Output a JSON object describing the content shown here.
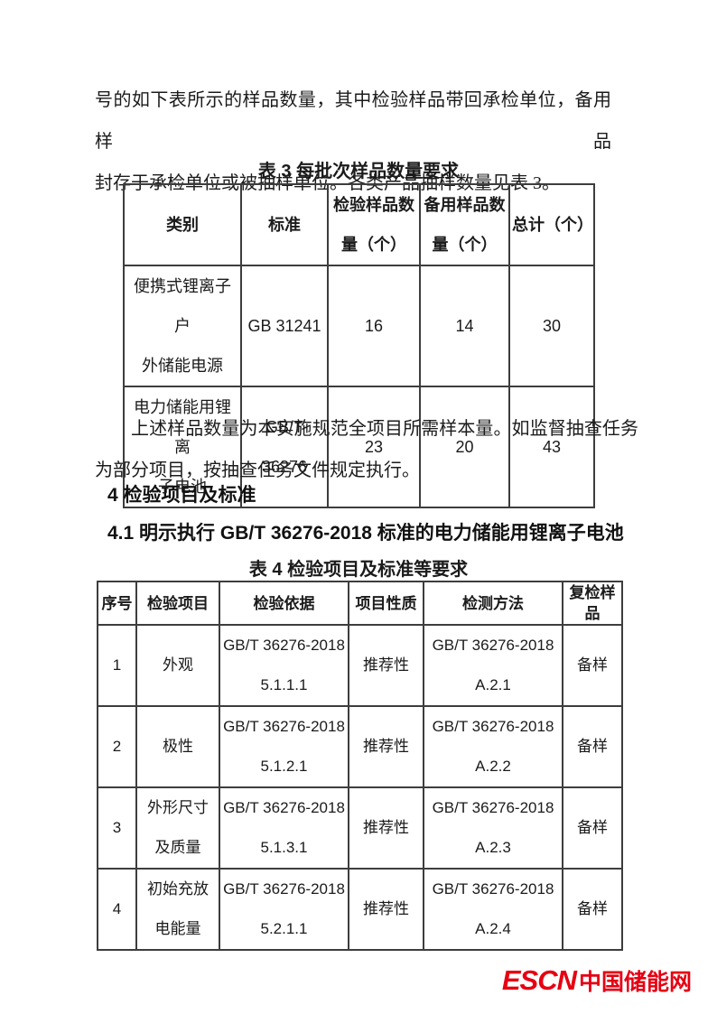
{
  "page": {
    "intro": {
      "line1": "号的如下表所示的样品数量，其中检验样品带回承检单位，备用样品",
      "line2": "封存于承检单位或被抽样单位。各类产品抽样数量见表 3。"
    },
    "table3": {
      "title": "表 3 每批次样品数量要求",
      "headers": [
        "类别",
        "标准",
        "检验样品数\n量（个）",
        "备用样品数\n量（个）",
        "总计（个）"
      ],
      "rows": [
        [
          "便携式锂离子户\n外储能电源",
          "GB 31241",
          "16",
          "14",
          "30"
        ],
        [
          "电力储能用锂离\n子电池",
          "GB/T 36276",
          "23",
          "20",
          "43"
        ]
      ]
    },
    "note": "上述样品数量为本实施规范全项目所需样本量。如监督抽查任务为部分项目，按抽查任务文件规定执行。",
    "section4": {
      "heading": "4 检验项目及标准",
      "subheading": "4.1 明示执行 GB/T 36276-2018 标准的电力储能用锂离子电池"
    },
    "table4": {
      "title": "表 4 检验项目及标准等要求",
      "headers": [
        "序号",
        "检验项目",
        "检验依据",
        "项目性质",
        "检测方法",
        "复检样\n品"
      ],
      "rows": [
        [
          "1",
          "外观",
          "GB/T 36276-2018\n5.1.1.1",
          "推荐性",
          "GB/T 36276-2018\nA.2.1",
          "备样"
        ],
        [
          "2",
          "极性",
          "GB/T 36276-2018\n5.1.2.1",
          "推荐性",
          "GB/T 36276-2018\nA.2.2",
          "备样"
        ],
        [
          "3",
          "外形尺寸\n及质量",
          "GB/T 36276-2018\n5.1.3.1",
          "推荐性",
          "GB/T 36276-2018\nA.2.3",
          "备样"
        ],
        [
          "4",
          "初始充放\n电能量",
          "GB/T 36276-2018\n5.2.1.1",
          "推荐性",
          "GB/T 36276-2018\nA.2.4",
          "备样"
        ]
      ]
    },
    "footer": {
      "logo_latin": "ESCN",
      "logo_chinese": "中国储能网",
      "logo_color": "#e60012"
    }
  }
}
